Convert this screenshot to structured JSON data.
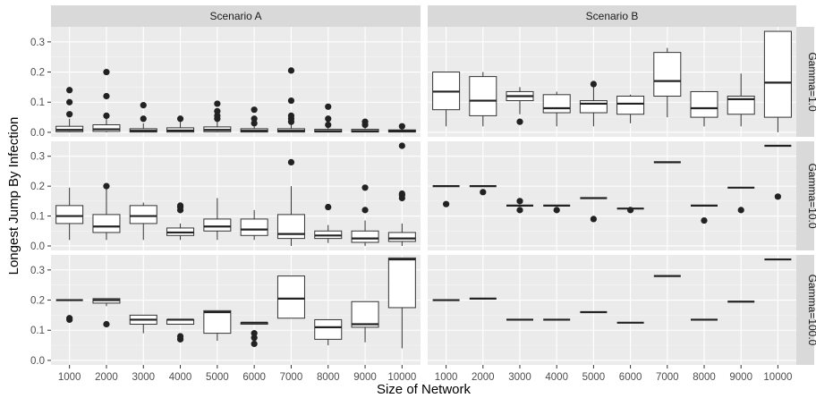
{
  "chart_data": {
    "type": "boxplot",
    "xlabel": "Size of Network",
    "ylabel": "Longest Jump By Infection",
    "categories": [
      "1000",
      "2000",
      "3000",
      "4000",
      "5000",
      "6000",
      "7000",
      "8000",
      "9000",
      "10000"
    ],
    "ylim": [
      -0.015,
      0.35
    ],
    "yticks": [
      0.0,
      0.1,
      0.2,
      0.3
    ],
    "ytick_labels": [
      "0.0",
      "0.1",
      "0.2",
      "0.3"
    ],
    "facet_columns": [
      "Scenario A",
      "Scenario B"
    ],
    "facet_rows": [
      "Gamma=1.0",
      "Gamma=10.0",
      "Gamma=100.0"
    ],
    "grid": true,
    "panels": [
      {
        "col": "Scenario A",
        "row": "Gamma=1.0",
        "boxes": [
          {
            "x": "1000",
            "lo": 0.0,
            "q1": 0.002,
            "med": 0.008,
            "q3": 0.02,
            "hi": 0.045,
            "outliers": [
              0.06,
              0.1,
              0.14
            ]
          },
          {
            "x": "2000",
            "lo": 0.0,
            "q1": 0.003,
            "med": 0.01,
            "q3": 0.025,
            "hi": 0.05,
            "outliers": [
              0.055,
              0.12,
              0.2
            ]
          },
          {
            "x": "3000",
            "lo": 0.0,
            "q1": 0.001,
            "med": 0.005,
            "q3": 0.012,
            "hi": 0.03,
            "outliers": [
              0.045,
              0.09
            ]
          },
          {
            "x": "4000",
            "lo": 0.0,
            "q1": 0.001,
            "med": 0.006,
            "q3": 0.015,
            "hi": 0.035,
            "outliers": [
              0.045
            ]
          },
          {
            "x": "5000",
            "lo": 0.0,
            "q1": 0.002,
            "med": 0.008,
            "q3": 0.018,
            "hi": 0.04,
            "outliers": [
              0.045,
              0.055,
              0.07,
              0.095
            ]
          },
          {
            "x": "6000",
            "lo": 0.0,
            "q1": 0.001,
            "med": 0.005,
            "q3": 0.012,
            "hi": 0.025,
            "outliers": [
              0.03,
              0.045,
              0.075
            ]
          },
          {
            "x": "7000",
            "lo": 0.0,
            "q1": 0.001,
            "med": 0.005,
            "q3": 0.012,
            "hi": 0.025,
            "outliers": [
              0.035,
              0.045,
              0.055,
              0.105,
              0.205
            ]
          },
          {
            "x": "8000",
            "lo": 0.0,
            "q1": 0.001,
            "med": 0.004,
            "q3": 0.01,
            "hi": 0.02,
            "outliers": [
              0.025,
              0.045,
              0.085
            ]
          },
          {
            "x": "9000",
            "lo": 0.0,
            "q1": 0.001,
            "med": 0.004,
            "q3": 0.01,
            "hi": 0.02,
            "outliers": [
              0.025,
              0.035
            ]
          },
          {
            "x": "10000",
            "lo": 0.0,
            "q1": 0.001,
            "med": 0.004,
            "q3": 0.008,
            "hi": 0.015,
            "outliers": [
              0.02
            ]
          }
        ]
      },
      {
        "col": "Scenario B",
        "row": "Gamma=1.0",
        "boxes": [
          {
            "x": "1000",
            "lo": 0.02,
            "q1": 0.075,
            "med": 0.135,
            "q3": 0.2,
            "hi": 0.2,
            "outliers": []
          },
          {
            "x": "2000",
            "lo": 0.02,
            "q1": 0.055,
            "med": 0.105,
            "q3": 0.185,
            "hi": 0.2,
            "outliers": []
          },
          {
            "x": "3000",
            "lo": 0.06,
            "q1": 0.105,
            "med": 0.12,
            "q3": 0.135,
            "hi": 0.15,
            "outliers": [
              0.035
            ]
          },
          {
            "x": "4000",
            "lo": 0.02,
            "q1": 0.065,
            "med": 0.08,
            "q3": 0.125,
            "hi": 0.135,
            "outliers": []
          },
          {
            "x": "5000",
            "lo": 0.02,
            "q1": 0.065,
            "med": 0.095,
            "q3": 0.105,
            "hi": 0.155,
            "outliers": [
              0.16
            ]
          },
          {
            "x": "6000",
            "lo": 0.03,
            "q1": 0.06,
            "med": 0.095,
            "q3": 0.12,
            "hi": 0.125,
            "outliers": []
          },
          {
            "x": "7000",
            "lo": 0.05,
            "q1": 0.12,
            "med": 0.17,
            "q3": 0.265,
            "hi": 0.28,
            "outliers": []
          },
          {
            "x": "8000",
            "lo": 0.02,
            "q1": 0.05,
            "med": 0.08,
            "q3": 0.135,
            "hi": 0.135,
            "outliers": []
          },
          {
            "x": "9000",
            "lo": 0.02,
            "q1": 0.06,
            "med": 0.11,
            "q3": 0.12,
            "hi": 0.195,
            "outliers": []
          },
          {
            "x": "10000",
            "lo": 0.0,
            "q1": 0.05,
            "med": 0.165,
            "q3": 0.335,
            "hi": 0.335,
            "outliers": []
          }
        ]
      },
      {
        "col": "Scenario A",
        "row": "Gamma=10.0",
        "boxes": [
          {
            "x": "1000",
            "lo": 0.02,
            "q1": 0.075,
            "med": 0.1,
            "q3": 0.135,
            "hi": 0.195,
            "outliers": []
          },
          {
            "x": "2000",
            "lo": 0.02,
            "q1": 0.045,
            "med": 0.065,
            "q3": 0.105,
            "hi": 0.19,
            "outliers": [
              0.2
            ]
          },
          {
            "x": "3000",
            "lo": 0.02,
            "q1": 0.075,
            "med": 0.1,
            "q3": 0.135,
            "hi": 0.145,
            "outliers": []
          },
          {
            "x": "4000",
            "lo": 0.02,
            "q1": 0.035,
            "med": 0.045,
            "q3": 0.06,
            "hi": 0.075,
            "outliers": [
              0.12,
              0.13,
              0.135
            ]
          },
          {
            "x": "5000",
            "lo": 0.02,
            "q1": 0.05,
            "med": 0.065,
            "q3": 0.09,
            "hi": 0.16,
            "outliers": []
          },
          {
            "x": "6000",
            "lo": 0.02,
            "q1": 0.035,
            "med": 0.055,
            "q3": 0.09,
            "hi": 0.12,
            "outliers": []
          },
          {
            "x": "7000",
            "lo": 0.0,
            "q1": 0.025,
            "med": 0.04,
            "q3": 0.105,
            "hi": 0.2,
            "outliers": [
              0.28
            ]
          },
          {
            "x": "8000",
            "lo": 0.01,
            "q1": 0.025,
            "med": 0.035,
            "q3": 0.05,
            "hi": 0.07,
            "outliers": [
              0.13
            ]
          },
          {
            "x": "9000",
            "lo": 0.0,
            "q1": 0.012,
            "med": 0.025,
            "q3": 0.05,
            "hi": 0.085,
            "outliers": [
              0.12,
              0.195
            ]
          },
          {
            "x": "10000",
            "lo": 0.0,
            "q1": 0.015,
            "med": 0.025,
            "q3": 0.045,
            "hi": 0.075,
            "outliers": [
              0.16,
              0.17,
              0.175,
              0.335
            ]
          }
        ]
      },
      {
        "col": "Scenario B",
        "row": "Gamma=10.0",
        "boxes": [
          {
            "x": "1000",
            "lo": 0.2,
            "q1": 0.2,
            "med": 0.2,
            "q3": 0.2,
            "hi": 0.2,
            "outliers": [
              0.14
            ]
          },
          {
            "x": "2000",
            "lo": 0.2,
            "q1": 0.2,
            "med": 0.2,
            "q3": 0.2,
            "hi": 0.2,
            "outliers": [
              0.18
            ]
          },
          {
            "x": "3000",
            "lo": 0.135,
            "q1": 0.135,
            "med": 0.135,
            "q3": 0.135,
            "hi": 0.135,
            "outliers": [
              0.12,
              0.15
            ]
          },
          {
            "x": "4000",
            "lo": 0.135,
            "q1": 0.135,
            "med": 0.135,
            "q3": 0.135,
            "hi": 0.135,
            "outliers": [
              0.12
            ]
          },
          {
            "x": "5000",
            "lo": 0.16,
            "q1": 0.16,
            "med": 0.16,
            "q3": 0.16,
            "hi": 0.16,
            "outliers": [
              0.09
            ]
          },
          {
            "x": "6000",
            "lo": 0.125,
            "q1": 0.125,
            "med": 0.125,
            "q3": 0.125,
            "hi": 0.125,
            "outliers": [
              0.12
            ]
          },
          {
            "x": "7000",
            "lo": 0.28,
            "q1": 0.28,
            "med": 0.28,
            "q3": 0.28,
            "hi": 0.28,
            "outliers": []
          },
          {
            "x": "8000",
            "lo": 0.135,
            "q1": 0.135,
            "med": 0.135,
            "q3": 0.135,
            "hi": 0.135,
            "outliers": [
              0.085
            ]
          },
          {
            "x": "9000",
            "lo": 0.195,
            "q1": 0.195,
            "med": 0.195,
            "q3": 0.195,
            "hi": 0.195,
            "outliers": [
              0.12
            ]
          },
          {
            "x": "10000",
            "lo": 0.335,
            "q1": 0.335,
            "med": 0.335,
            "q3": 0.335,
            "hi": 0.335,
            "outliers": [
              0.165
            ]
          }
        ]
      },
      {
        "col": "Scenario A",
        "row": "Gamma=100.0",
        "boxes": [
          {
            "x": "1000",
            "lo": 0.2,
            "q1": 0.2,
            "med": 0.2,
            "q3": 0.2,
            "hi": 0.2,
            "outliers": [
              0.135,
              0.14
            ]
          },
          {
            "x": "2000",
            "lo": 0.18,
            "q1": 0.19,
            "med": 0.2,
            "q3": 0.205,
            "hi": 0.205,
            "outliers": [
              0.12
            ]
          },
          {
            "x": "3000",
            "lo": 0.09,
            "q1": 0.12,
            "med": 0.135,
            "q3": 0.15,
            "hi": 0.15,
            "outliers": []
          },
          {
            "x": "4000",
            "lo": 0.12,
            "q1": 0.12,
            "med": 0.135,
            "q3": 0.135,
            "hi": 0.135,
            "outliers": [
              0.07,
              0.08
            ]
          },
          {
            "x": "5000",
            "lo": 0.065,
            "q1": 0.09,
            "med": 0.16,
            "q3": 0.165,
            "hi": 0.165,
            "outliers": []
          },
          {
            "x": "6000",
            "lo": 0.12,
            "q1": 0.12,
            "med": 0.125,
            "q3": 0.125,
            "hi": 0.125,
            "outliers": [
              0.055,
              0.075,
              0.09
            ]
          },
          {
            "x": "7000",
            "lo": 0.14,
            "q1": 0.14,
            "med": 0.205,
            "q3": 0.28,
            "hi": 0.28,
            "outliers": []
          },
          {
            "x": "8000",
            "lo": 0.05,
            "q1": 0.07,
            "med": 0.11,
            "q3": 0.135,
            "hi": 0.135,
            "outliers": []
          },
          {
            "x": "9000",
            "lo": 0.06,
            "q1": 0.11,
            "med": 0.12,
            "q3": 0.195,
            "hi": 0.195,
            "outliers": []
          },
          {
            "x": "10000",
            "lo": 0.04,
            "q1": 0.175,
            "med": 0.335,
            "q3": 0.34,
            "hi": 0.34,
            "outliers": []
          }
        ]
      },
      {
        "col": "Scenario B",
        "row": "Gamma=100.0",
        "boxes": [
          {
            "x": "1000",
            "lo": 0.2,
            "q1": 0.2,
            "med": 0.2,
            "q3": 0.2,
            "hi": 0.2,
            "outliers": []
          },
          {
            "x": "2000",
            "lo": 0.205,
            "q1": 0.205,
            "med": 0.205,
            "q3": 0.205,
            "hi": 0.205,
            "outliers": []
          },
          {
            "x": "3000",
            "lo": 0.135,
            "q1": 0.135,
            "med": 0.135,
            "q3": 0.135,
            "hi": 0.135,
            "outliers": []
          },
          {
            "x": "4000",
            "lo": 0.135,
            "q1": 0.135,
            "med": 0.135,
            "q3": 0.135,
            "hi": 0.135,
            "outliers": []
          },
          {
            "x": "5000",
            "lo": 0.16,
            "q1": 0.16,
            "med": 0.16,
            "q3": 0.16,
            "hi": 0.16,
            "outliers": []
          },
          {
            "x": "6000",
            "lo": 0.125,
            "q1": 0.125,
            "med": 0.125,
            "q3": 0.125,
            "hi": 0.125,
            "outliers": []
          },
          {
            "x": "7000",
            "lo": 0.28,
            "q1": 0.28,
            "med": 0.28,
            "q3": 0.28,
            "hi": 0.28,
            "outliers": []
          },
          {
            "x": "8000",
            "lo": 0.135,
            "q1": 0.135,
            "med": 0.135,
            "q3": 0.135,
            "hi": 0.135,
            "outliers": []
          },
          {
            "x": "9000",
            "lo": 0.195,
            "q1": 0.195,
            "med": 0.195,
            "q3": 0.195,
            "hi": 0.195,
            "outliers": []
          },
          {
            "x": "10000",
            "lo": 0.335,
            "q1": 0.335,
            "med": 0.335,
            "q3": 0.335,
            "hi": 0.335,
            "outliers": []
          }
        ]
      }
    ]
  }
}
